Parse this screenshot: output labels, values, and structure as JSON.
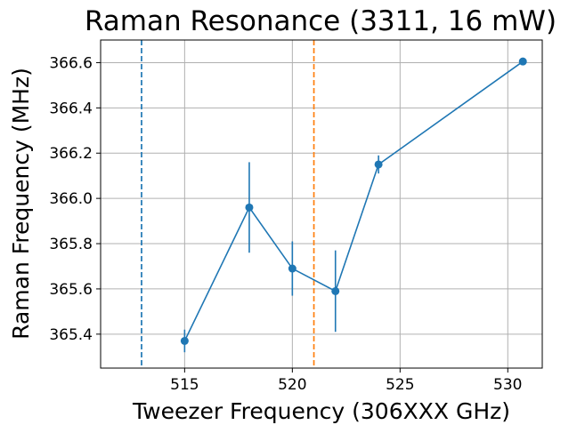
{
  "chart_data": {
    "type": "scatter",
    "title": "Raman Resonance (3311, 16 mW)",
    "xlabel": "Tweezer Frequency (306XXX GHz)",
    "ylabel": "Raman Frequency (MHz)",
    "xlim": [
      511.1,
      531.6
    ],
    "ylim": [
      365.25,
      366.7
    ],
    "grid": true,
    "xticks": [
      515,
      520,
      525,
      530
    ],
    "yticks": [
      365.4,
      365.6,
      365.8,
      366.0,
      366.2,
      366.4,
      366.6
    ],
    "xtick_labels": [
      "515",
      "520",
      "525",
      "530"
    ],
    "ytick_labels": [
      "365.4",
      "365.6",
      "365.8",
      "366.0",
      "366.2",
      "366.4",
      "366.6"
    ],
    "series": [
      {
        "color": "#1f77b4",
        "marker": "circle",
        "line": "solid",
        "points": [
          {
            "x": 515,
            "y": 365.37,
            "yerr": 0.05
          },
          {
            "x": 518,
            "y": 365.96,
            "yerr": 0.2
          },
          {
            "x": 520,
            "y": 365.69,
            "yerr": 0.12
          },
          {
            "x": 522,
            "y": 365.59,
            "yerr": 0.18
          },
          {
            "x": 524,
            "y": 366.15,
            "yerr": 0.04
          },
          {
            "x": 530.7,
            "y": 366.605,
            "yerr": 0.015
          }
        ]
      }
    ],
    "vlines": [
      {
        "x": 513,
        "color": "#1f77b4",
        "style": "dashed"
      },
      {
        "x": 521,
        "color": "#ff7f0e",
        "style": "dashed"
      }
    ]
  }
}
